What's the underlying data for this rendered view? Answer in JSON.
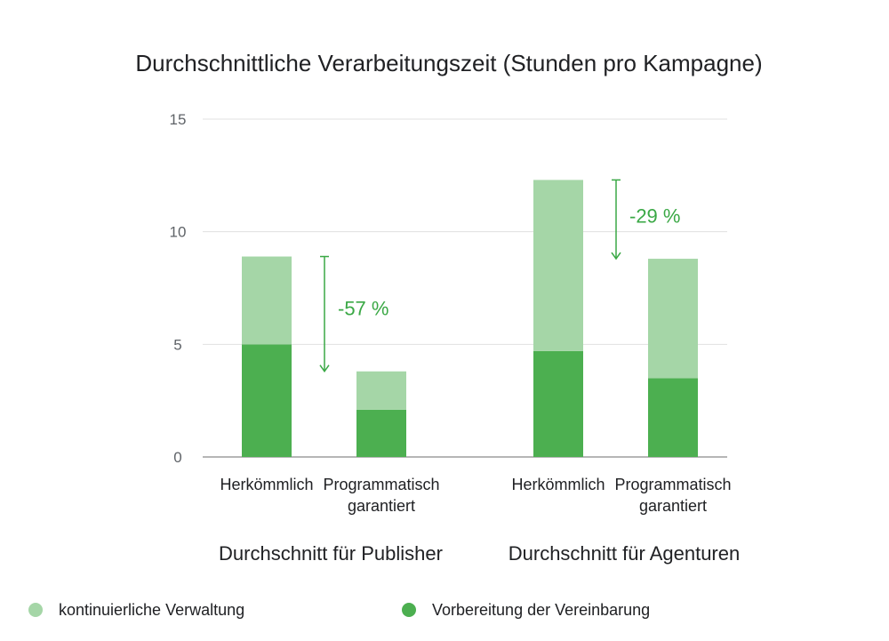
{
  "chart_data": {
    "type": "bar",
    "stacked": true,
    "title": "Durchschnittliche Verarbeitungszeit (Stunden pro Kampagne)",
    "ylim": [
      0,
      15
    ],
    "yticks": [
      0,
      5,
      10,
      15
    ],
    "grid": true,
    "groups": [
      {
        "label": "Durchschnitt für Publisher",
        "categories": [
          [
            "Herkömmlich"
          ],
          [
            "Programmatisch",
            "garantiert"
          ]
        ],
        "annotation": "-57 %"
      },
      {
        "label": "Durchschnitt für Agenturen",
        "categories": [
          [
            "Herkömmlich"
          ],
          [
            "Programmatisch",
            "garantiert"
          ]
        ],
        "annotation": "-29 %"
      }
    ],
    "series": [
      {
        "name": "Vorbereitung der Vereinbarung",
        "color": "#4caf50",
        "values": [
          5.0,
          2.1,
          4.7,
          3.5
        ]
      },
      {
        "name": "kontinuierliche Verwaltung",
        "color": "#a5d6a7",
        "values": [
          3.9,
          1.7,
          7.6,
          5.3
        ]
      }
    ],
    "legend_position": "bottom",
    "legend_order": [
      "kontinuierliche Verwaltung",
      "Vorbereitung der Vereinbarung"
    ],
    "annotation_color": "#3aa845",
    "grid_color": "#e0e0e0",
    "axis_color": "#9e9e9e"
  }
}
